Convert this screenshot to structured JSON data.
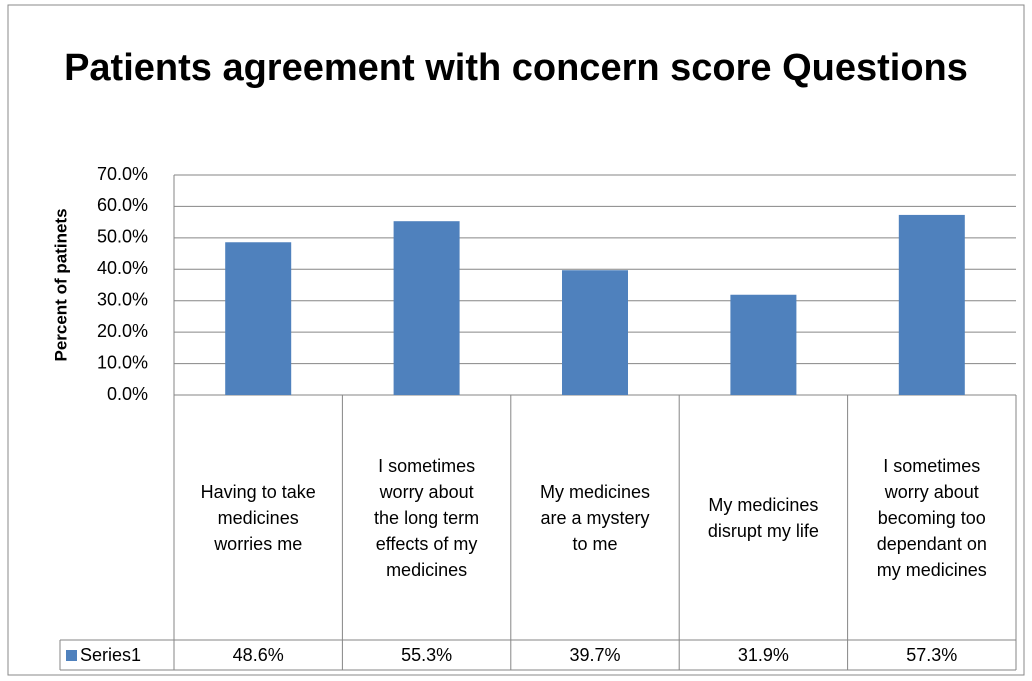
{
  "chart_data": {
    "type": "bar",
    "title": "Patients agreement with concern score Questions",
    "y_label": "Percent of patinets",
    "categories": [
      "Having to take medicines worries me",
      "I sometimes worry about the long term effects of my medicines",
      "My medicines are a mystery to me",
      "My medicines disrupt my life",
      "I sometimes worry about becoming too dependant on my medicines"
    ],
    "series": [
      {
        "name": "Series1",
        "color": "#4f81bd",
        "values": [
          48.6,
          55.3,
          39.7,
          31.9,
          57.3
        ],
        "value_labels": [
          "48.6%",
          "55.3%",
          "39.7%",
          "31.9%",
          "57.3%"
        ]
      }
    ],
    "ylim": [
      0,
      70
    ],
    "yticks": [
      {
        "value": 0,
        "label": "0.0%"
      },
      {
        "value": 10,
        "label": "10.0%"
      },
      {
        "value": 20,
        "label": "20.0%"
      },
      {
        "value": 30,
        "label": "30.0%"
      },
      {
        "value": 40,
        "label": "40.0%"
      },
      {
        "value": 50,
        "label": "50.0%"
      },
      {
        "value": 60,
        "label": "60.0%"
      },
      {
        "value": 70,
        "label": "70.0%"
      }
    ],
    "grid": true
  }
}
